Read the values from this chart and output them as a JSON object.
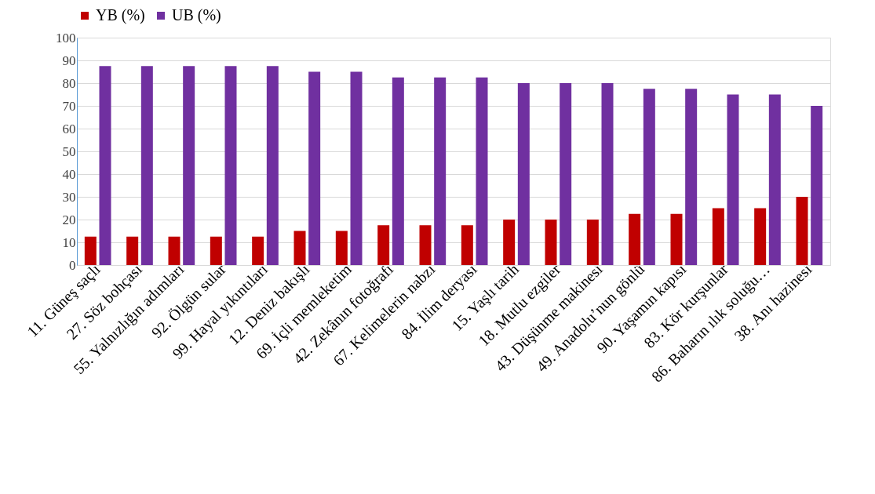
{
  "chart_data": {
    "type": "bar",
    "categories": [
      "11. Güneş saçlı",
      "27. Söz bohçası",
      "55. Yalnızlığın adımları",
      "92. Ölgün sular",
      "99. Hayal yıkıntıları",
      "12. Deniz bakışlı",
      "69. İçli memleketim",
      "42. Zekânın fotoğrafı",
      "67. Kelimelerin nabzı",
      "84. İlim deryası",
      "15. Yaşlı tarih",
      "18. Mutlu ezgiler",
      "43. Düşünme makinesi",
      "49. Anadolu’nun gönlü",
      "90. Yaşamın kapısı",
      "83. Kör kurşunlar",
      "86. Baharın ılık soluğu…",
      "38. Anı hazinesi"
    ],
    "series": [
      {
        "name": "YB (%)",
        "color": "#c00000",
        "values": [
          12.5,
          12.5,
          12.5,
          12.5,
          12.5,
          15,
          15,
          17.5,
          17.5,
          17.5,
          20,
          20,
          20,
          22.5,
          22.5,
          25,
          25,
          30
        ]
      },
      {
        "name": "UB (%)",
        "color": "#7030a0",
        "values": [
          87.5,
          87.5,
          87.5,
          87.5,
          87.5,
          85,
          85,
          82.5,
          82.5,
          82.5,
          80,
          80,
          80,
          77.5,
          77.5,
          75,
          75,
          70
        ]
      }
    ],
    "ylim": [
      0,
      100
    ],
    "yticks": [
      0,
      10,
      20,
      30,
      40,
      50,
      60,
      70,
      80,
      90,
      100
    ],
    "grid": "y",
    "legend": "top"
  }
}
